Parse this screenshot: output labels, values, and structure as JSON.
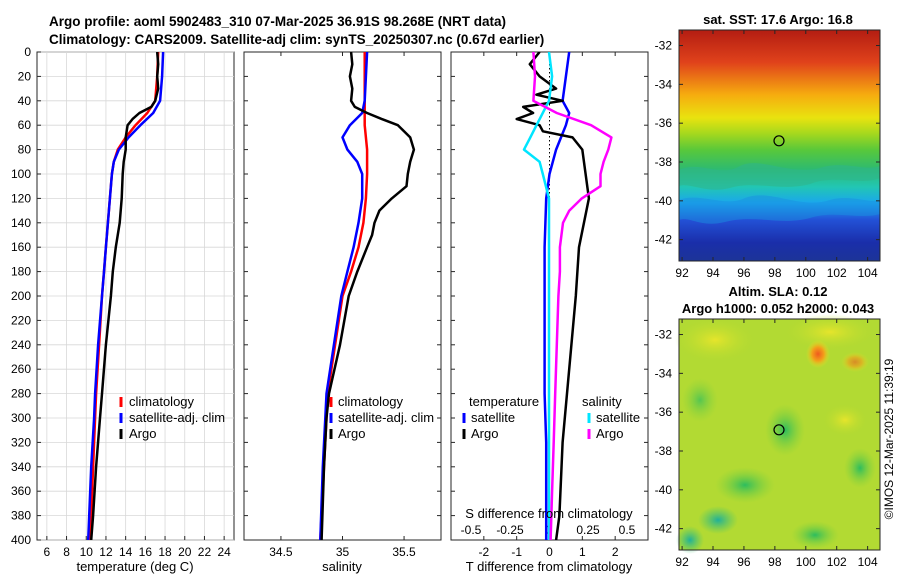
{
  "title": {
    "line1": "Argo profile: aoml 5902483_310 07-Mar-2025 36.91S 98.268E (NRT data)",
    "line2": "Climatology: CARS2009. Satellite-adj clim: synTS_20250307.nc (0.67d earlier)"
  },
  "colors": {
    "climatology": "#ff0000",
    "satellite": "#0000ff",
    "argo": "#000000",
    "sat_salinity": "#00e5ff",
    "argo_salinity": "#ff00ff"
  },
  "chart_data": [
    {
      "type": "line",
      "id": "temperature",
      "xlabel": "temperature (deg C)",
      "ylabel": "",
      "xlim": [
        5,
        25
      ],
      "ylim": [
        400,
        0
      ],
      "xticks": [
        "6",
        "8",
        "10",
        "12",
        "14",
        "16",
        "18",
        "20",
        "22",
        "24"
      ],
      "yticks": [
        "0",
        "20",
        "40",
        "60",
        "80",
        "100",
        "120",
        "140",
        "160",
        "180",
        "200",
        "220",
        "240",
        "260",
        "280",
        "300",
        "320",
        "340",
        "360",
        "380",
        "400"
      ],
      "legend": [
        "climatology",
        "satellite-adj. clim",
        "Argo"
      ],
      "series": [
        {
          "name": "climatology",
          "depth": [
            0,
            20,
            40,
            50,
            60,
            70,
            80,
            90,
            100,
            120,
            140,
            160,
            180,
            200,
            240,
            280,
            300,
            340,
            380,
            400
          ],
          "values": [
            17.3,
            17.2,
            17.0,
            16.2,
            15.0,
            14.0,
            13.2,
            12.8,
            12.6,
            12.4,
            12.2,
            12.0,
            11.8,
            11.6,
            11.3,
            11.0,
            10.9,
            10.7,
            10.5,
            10.4
          ]
        },
        {
          "name": "satellite-adj. clim",
          "depth": [
            0,
            20,
            40,
            50,
            60,
            70,
            80,
            90,
            100,
            120,
            140,
            160,
            180,
            200,
            240,
            280,
            300,
            340,
            380,
            400
          ],
          "values": [
            17.8,
            17.7,
            17.5,
            16.8,
            15.5,
            14.3,
            13.3,
            12.8,
            12.6,
            12.4,
            12.2,
            12.0,
            11.8,
            11.6,
            11.2,
            10.9,
            10.8,
            10.5,
            10.3,
            10.2
          ]
        },
        {
          "name": "Argo",
          "depth": [
            0,
            10,
            20,
            30,
            40,
            45,
            50,
            55,
            60,
            70,
            80,
            90,
            100,
            120,
            140,
            160,
            180,
            200,
            240,
            280,
            300,
            340,
            380,
            400
          ],
          "values": [
            17.2,
            17.3,
            17.2,
            17.3,
            17.0,
            16.6,
            15.4,
            14.7,
            14.2,
            14.0,
            14.0,
            13.8,
            13.7,
            13.6,
            13.4,
            13.0,
            12.7,
            12.5,
            12.0,
            11.6,
            11.4,
            11.0,
            10.7,
            10.5
          ]
        }
      ]
    },
    {
      "type": "line",
      "id": "salinity",
      "xlabel": "salinity",
      "xlim": [
        34.2,
        35.8
      ],
      "ylim": [
        400,
        0
      ],
      "xticks": [
        "34.5",
        "35",
        "35.5"
      ],
      "legend": [
        "climatology",
        "satellite-adj. clim",
        "Argo"
      ],
      "series": [
        {
          "name": "climatology",
          "depth": [
            0,
            20,
            40,
            60,
            80,
            100,
            120,
            140,
            160,
            180,
            200,
            240,
            280,
            300,
            340,
            400
          ],
          "values": [
            35.18,
            35.18,
            35.18,
            35.18,
            35.2,
            35.2,
            35.19,
            35.17,
            35.13,
            35.07,
            35.0,
            34.94,
            34.88,
            34.87,
            34.85,
            34.82
          ]
        },
        {
          "name": "satellite-adj. clim",
          "depth": [
            0,
            20,
            40,
            50,
            60,
            70,
            80,
            90,
            100,
            120,
            140,
            160,
            180,
            200,
            240,
            280,
            300,
            340,
            400
          ],
          "values": [
            35.2,
            35.19,
            35.18,
            35.16,
            35.06,
            35.0,
            35.04,
            35.12,
            35.16,
            35.16,
            35.13,
            35.09,
            35.04,
            34.99,
            34.93,
            34.87,
            34.86,
            34.84,
            34.82
          ]
        },
        {
          "name": "Argo",
          "depth": [
            0,
            10,
            20,
            30,
            40,
            45,
            50,
            55,
            60,
            70,
            80,
            90,
            100,
            110,
            120,
            130,
            140,
            150,
            160,
            180,
            200,
            240,
            280,
            300,
            340,
            400
          ],
          "values": [
            35.07,
            35.08,
            35.06,
            35.08,
            35.07,
            35.1,
            35.2,
            35.32,
            35.45,
            35.55,
            35.58,
            35.55,
            35.53,
            35.52,
            35.4,
            35.3,
            35.26,
            35.24,
            35.2,
            35.12,
            35.05,
            34.98,
            34.89,
            34.87,
            34.85,
            34.83
          ]
        }
      ]
    },
    {
      "type": "line",
      "id": "difference",
      "xlabel": "T difference from climatology",
      "xlabel2": "S difference from climatology",
      "xlim": [
        -3,
        3
      ],
      "ylim": [
        400,
        0
      ],
      "xticks": [
        "-2",
        "-1",
        "0",
        "1",
        "2"
      ],
      "xticks2": [
        "-0.5",
        "-0.25",
        "0",
        "0.25",
        "0.5"
      ],
      "legend_temperature_title": "temperature",
      "legend_salinity_title": "salinity",
      "legend_entries": [
        "satellite",
        "Argo"
      ],
      "series": [
        {
          "name": "T satellite",
          "depth": [
            0,
            20,
            40,
            50,
            60,
            80,
            100,
            120,
            160,
            200,
            240,
            280,
            320,
            360,
            400
          ],
          "values": [
            0.6,
            0.5,
            0.4,
            0.6,
            0.5,
            0.2,
            0.0,
            -0.1,
            -0.15,
            -0.15,
            -0.15,
            -0.15,
            -0.1,
            -0.1,
            -0.1
          ]
        },
        {
          "name": "T Argo",
          "depth": [
            0,
            10,
            20,
            30,
            35,
            40,
            45,
            50,
            55,
            60,
            65,
            70,
            80,
            100,
            120,
            160,
            200,
            260,
            320,
            380,
            400
          ],
          "values": [
            -0.3,
            -0.6,
            -0.3,
            0.2,
            -0.4,
            0.4,
            -0.8,
            -0.5,
            -1.0,
            -0.3,
            -0.2,
            0.7,
            1.0,
            1.1,
            1.2,
            0.9,
            0.8,
            0.6,
            0.4,
            0.3,
            0.2
          ]
        },
        {
          "name": "S satellite",
          "depth": [
            0,
            20,
            40,
            60,
            70,
            80,
            90,
            100,
            120,
            160,
            200,
            260,
            320,
            400
          ],
          "values": [
            0.0,
            0.02,
            0.0,
            -0.08,
            -0.12,
            -0.16,
            -0.06,
            -0.04,
            0.0,
            0.0,
            0.0,
            0.0,
            0.0,
            0.0
          ]
        },
        {
          "name": "S Argo",
          "depth": [
            0,
            20,
            40,
            50,
            60,
            70,
            80,
            90,
            100,
            110,
            120,
            130,
            140,
            160,
            180,
            200,
            240,
            280,
            320,
            360,
            400
          ],
          "values": [
            -0.1,
            -0.09,
            -0.1,
            0.05,
            0.27,
            0.4,
            0.38,
            0.35,
            0.33,
            0.33,
            0.21,
            0.13,
            0.09,
            0.07,
            0.07,
            0.06,
            0.05,
            0.04,
            0.03,
            0.02,
            0.01
          ]
        }
      ]
    },
    {
      "type": "heatmap",
      "id": "sst",
      "title": "sat. SST: 17.6 Argo: 16.8",
      "xticks": [
        "92",
        "94",
        "96",
        "98",
        "100",
        "102",
        "104"
      ],
      "yticks": [
        "-32",
        "-34",
        "-36",
        "-38",
        "-40",
        "-42"
      ],
      "argo_position": {
        "lon": 98.268,
        "lat": -36.91
      }
    },
    {
      "type": "heatmap",
      "id": "sla",
      "title": "Altim. SLA: 0.12",
      "subtitle": "Argo h1000: 0.052 h2000: 0.043",
      "xticks": [
        "92",
        "94",
        "96",
        "98",
        "100",
        "102",
        "104"
      ],
      "yticks": [
        "-32",
        "-34",
        "-36",
        "-38",
        "-40",
        "-42"
      ],
      "argo_position": {
        "lon": 98.268,
        "lat": -36.91
      }
    }
  ],
  "credit": "©IMOS 12-Mar-2025 11:39:19"
}
